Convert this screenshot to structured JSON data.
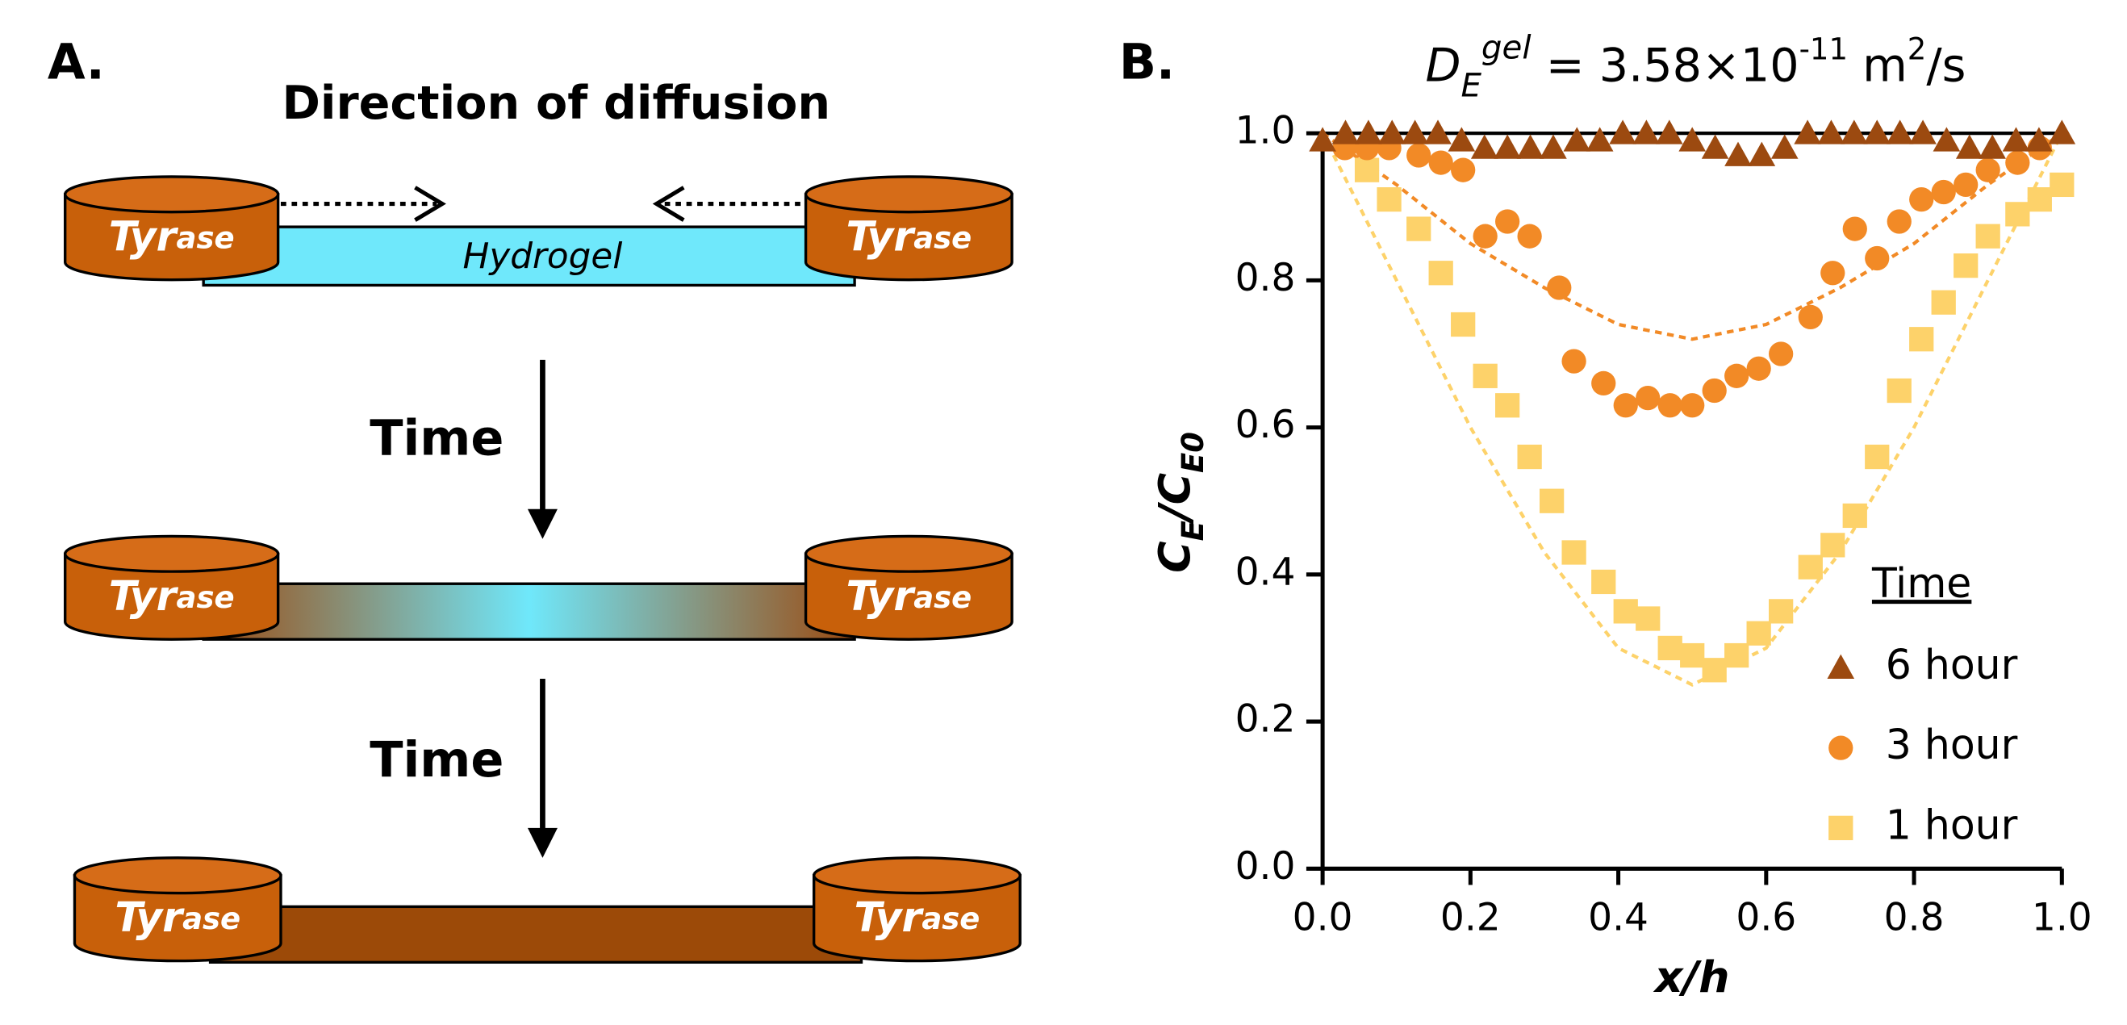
{
  "panel_a": {
    "label": "A.",
    "heading": "Direction of diffusion",
    "gel_label": "Hydrogel",
    "enzyme": "Tyr",
    "enzyme_suffix": "ase",
    "time_labels": [
      "Time",
      "Time"
    ]
  },
  "chart_data": {
    "type": "scatter",
    "panel_label": "B.",
    "title_parts": [
      "D",
      "E",
      "gel",
      " = 3.58×10",
      "-11",
      " m",
      "2",
      "/s"
    ],
    "ylabel_parts": [
      "C",
      "E",
      "/C",
      "E0"
    ],
    "xlabel": "x/h",
    "xlim": [
      0,
      1
    ],
    "ylim": [
      0,
      1
    ],
    "xticks": [
      {
        "value": 0,
        "label": "0.0"
      },
      0.2,
      0.4,
      0.6,
      0.8,
      {
        "value": 1,
        "label": "1.0"
      }
    ],
    "yticks": [
      {
        "value": 0,
        "label": "0.0"
      },
      0.2,
      0.4,
      0.6,
      0.8,
      {
        "value": 1,
        "label": "1.0"
      }
    ],
    "legend_title": "Time",
    "legend": "lower right",
    "series": [
      {
        "name": "6 hour",
        "color": "#9c4a10",
        "marker": "triangle",
        "x": [
          0,
          0.031,
          0.062,
          0.094,
          0.125,
          0.156,
          0.188,
          0.219,
          0.25,
          0.281,
          0.312,
          0.344,
          0.375,
          0.406,
          0.438,
          0.469,
          0.5,
          0.531,
          0.562,
          0.594,
          0.625,
          0.656,
          0.688,
          0.719,
          0.75,
          0.781,
          0.812,
          0.844,
          0.875,
          0.906,
          0.938,
          0.969,
          1.0
        ],
        "values": [
          0.99,
          1.0,
          1.0,
          1.0,
          1.0,
          1.0,
          0.99,
          0.98,
          0.98,
          0.98,
          0.98,
          0.99,
          0.99,
          1.0,
          1.0,
          1.0,
          0.99,
          0.98,
          0.97,
          0.97,
          0.98,
          1.0,
          1.0,
          1.0,
          1.0,
          1.0,
          1.0,
          0.99,
          0.98,
          0.98,
          0.99,
          0.99,
          1.0
        ]
      },
      {
        "name": "3 hour",
        "color": "#f28a26",
        "marker": "circle",
        "x": [
          0.03,
          0.06,
          0.09,
          0.13,
          0.16,
          0.19,
          0.22,
          0.25,
          0.28,
          0.32,
          0.34,
          0.38,
          0.41,
          0.44,
          0.47,
          0.5,
          0.53,
          0.56,
          0.59,
          0.62,
          0.66,
          0.69,
          0.72,
          0.75,
          0.78,
          0.81,
          0.84,
          0.87,
          0.9,
          0.94,
          0.97
        ],
        "values": [
          0.98,
          0.98,
          0.98,
          0.97,
          0.96,
          0.95,
          0.86,
          0.88,
          0.86,
          0.79,
          0.69,
          0.66,
          0.63,
          0.64,
          0.63,
          0.63,
          0.65,
          0.67,
          0.68,
          0.7,
          0.75,
          0.81,
          0.87,
          0.83,
          0.88,
          0.91,
          0.92,
          0.93,
          0.95,
          0.96,
          0.98
        ]
      },
      {
        "name": "1 hour",
        "color": "#fdd26a",
        "marker": "square",
        "x": [
          0.06,
          0.09,
          0.13,
          0.16,
          0.19,
          0.22,
          0.25,
          0.28,
          0.31,
          0.34,
          0.38,
          0.41,
          0.44,
          0.47,
          0.5,
          0.53,
          0.56,
          0.59,
          0.62,
          0.66,
          0.69,
          0.72,
          0.75,
          0.78,
          0.81,
          0.84,
          0.87,
          0.9,
          0.94,
          0.97,
          1.0
        ],
        "values": [
          0.95,
          0.91,
          0.87,
          0.81,
          0.74,
          0.67,
          0.63,
          0.56,
          0.5,
          0.43,
          0.39,
          0.35,
          0.34,
          0.3,
          0.29,
          0.27,
          0.29,
          0.32,
          0.35,
          0.41,
          0.44,
          0.48,
          0.56,
          0.65,
          0.72,
          0.77,
          0.82,
          0.86,
          0.89,
          0.91,
          0.93
        ]
      }
    ],
    "fits": [
      {
        "color": "#f28a26",
        "x": [
          0,
          0.1,
          0.2,
          0.3,
          0.4,
          0.5,
          0.6,
          0.7,
          0.8,
          0.9,
          1.0
        ],
        "values": [
          1.0,
          0.93,
          0.85,
          0.79,
          0.74,
          0.72,
          0.74,
          0.79,
          0.85,
          0.93,
          1.0
        ]
      },
      {
        "color": "#fdd26a",
        "x": [
          0,
          0.1,
          0.2,
          0.3,
          0.4,
          0.5,
          0.6,
          0.7,
          0.8,
          0.9,
          1.0
        ],
        "values": [
          1.0,
          0.8,
          0.6,
          0.43,
          0.3,
          0.25,
          0.3,
          0.43,
          0.6,
          0.8,
          1.0
        ]
      }
    ]
  }
}
